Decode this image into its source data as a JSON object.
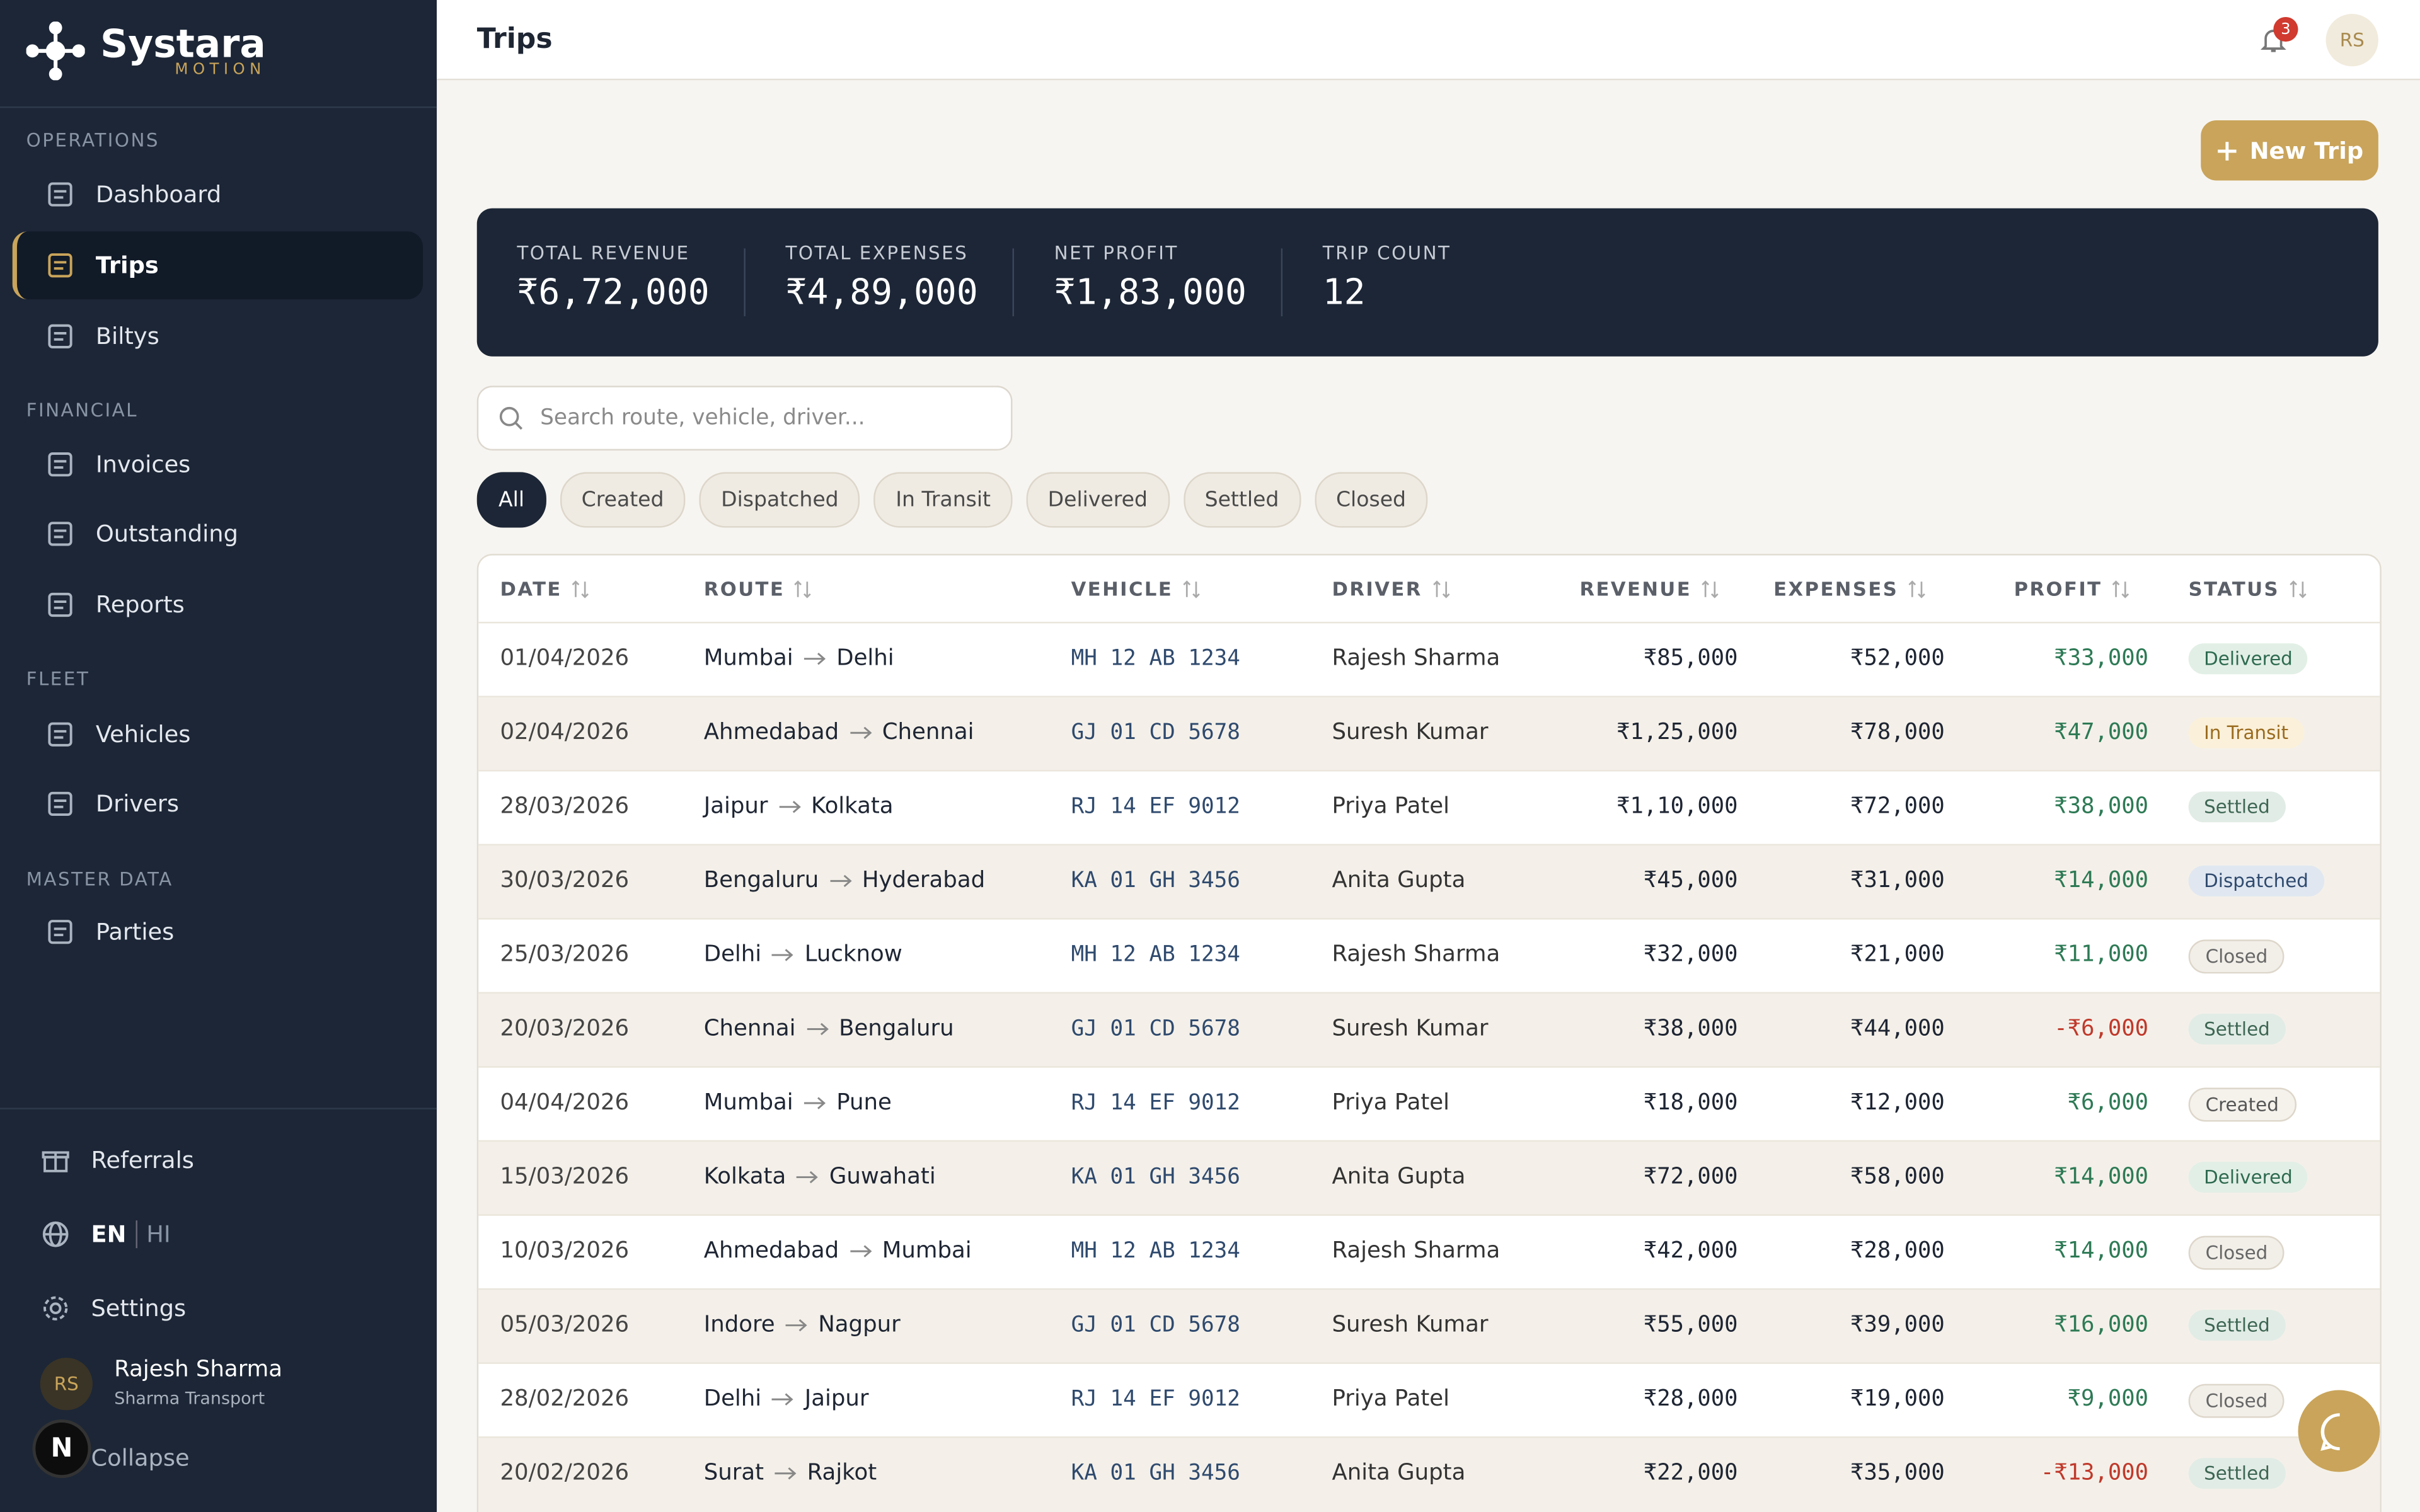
{
  "brand": {
    "name": "Systara",
    "tagline": "MOTION"
  },
  "sidebar": {
    "sections": [
      {
        "title": "OPERATIONS",
        "items": [
          "Dashboard",
          "Trips",
          "Biltys"
        ]
      },
      {
        "title": "FINANCIAL",
        "items": [
          "Invoices",
          "Outstanding",
          "Reports"
        ]
      },
      {
        "title": "FLEET",
        "items": [
          "Vehicles",
          "Drivers"
        ]
      },
      {
        "title": "MASTER DATA",
        "items": [
          "Parties"
        ]
      }
    ],
    "bottom": {
      "referrals": "Referrals",
      "lang_en": "EN",
      "lang_hi": "HI",
      "settings": "Settings",
      "collapse": "Collapse"
    },
    "user": {
      "initials": "RS",
      "name": "Rajesh Sharma",
      "company": "Sharma Transport"
    },
    "dev_badge": "N"
  },
  "header": {
    "title": "Trips",
    "notification_count": 3,
    "avatar": "RS"
  },
  "new_trip": "New Trip",
  "stats": [
    {
      "label": "TOTAL REVENUE",
      "value": "₹6,72,000"
    },
    {
      "label": "TOTAL EXPENSES",
      "value": "₹4,89,000"
    },
    {
      "label": "NET PROFIT",
      "value": "₹1,83,000"
    },
    {
      "label": "TRIP COUNT",
      "value": "12"
    }
  ],
  "search_placeholder": "Search route, vehicle, driver...",
  "filters": [
    "All",
    "Created",
    "Dispatched",
    "In Transit",
    "Delivered",
    "Settled",
    "Closed"
  ],
  "table": {
    "columns": [
      "DATE",
      "ROUTE",
      "VEHICLE",
      "DRIVER",
      "REVENUE",
      "EXPENSES",
      "PROFIT",
      "STATUS"
    ],
    "rows": [
      [
        "01/04/2026",
        "Mumbai",
        "Delhi",
        "MH 12 AB 1234",
        "Rajesh Sharma",
        "₹85,000",
        "₹52,000",
        "₹33,000",
        "Delivered"
      ],
      [
        "02/04/2026",
        "Ahmedabad",
        "Chennai",
        "GJ 01 CD 5678",
        "Suresh Kumar",
        "₹1,25,000",
        "₹78,000",
        "₹47,000",
        "In Transit"
      ],
      [
        "28/03/2026",
        "Jaipur",
        "Kolkata",
        "RJ 14 EF 9012",
        "Priya Patel",
        "₹1,10,000",
        "₹72,000",
        "₹38,000",
        "Settled"
      ],
      [
        "30/03/2026",
        "Bengaluru",
        "Hyderabad",
        "KA 01 GH 3456",
        "Anita Gupta",
        "₹45,000",
        "₹31,000",
        "₹14,000",
        "Dispatched"
      ],
      [
        "25/03/2026",
        "Delhi",
        "Lucknow",
        "MH 12 AB 1234",
        "Rajesh Sharma",
        "₹32,000",
        "₹21,000",
        "₹11,000",
        "Closed"
      ],
      [
        "20/03/2026",
        "Chennai",
        "Bengaluru",
        "GJ 01 CD 5678",
        "Suresh Kumar",
        "₹38,000",
        "₹44,000",
        "-₹6,000",
        "Settled"
      ],
      [
        "04/04/2026",
        "Mumbai",
        "Pune",
        "RJ 14 EF 9012",
        "Priya Patel",
        "₹18,000",
        "₹12,000",
        "₹6,000",
        "Created"
      ],
      [
        "15/03/2026",
        "Kolkata",
        "Guwahati",
        "KA 01 GH 3456",
        "Anita Gupta",
        "₹72,000",
        "₹58,000",
        "₹14,000",
        "Delivered"
      ],
      [
        "10/03/2026",
        "Ahmedabad",
        "Mumbai",
        "MH 12 AB 1234",
        "Rajesh Sharma",
        "₹42,000",
        "₹28,000",
        "₹14,000",
        "Closed"
      ],
      [
        "05/03/2026",
        "Indore",
        "Nagpur",
        "GJ 01 CD 5678",
        "Suresh Kumar",
        "₹55,000",
        "₹39,000",
        "₹16,000",
        "Settled"
      ],
      [
        "28/02/2026",
        "Delhi",
        "Jaipur",
        "RJ 14 EF 9012",
        "Priya Patel",
        "₹28,000",
        "₹19,000",
        "₹9,000",
        "Closed"
      ],
      [
        "20/02/2026",
        "Surat",
        "Rajkot",
        "KA 01 GH 3456",
        "Anita Gupta",
        "₹22,000",
        "₹35,000",
        "-₹13,000",
        "Settled"
      ]
    ]
  }
}
